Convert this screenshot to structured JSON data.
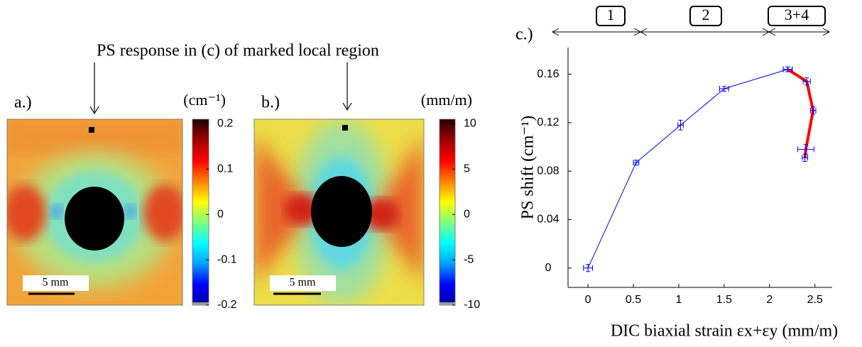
{
  "annotation": "PS response in (c) of marked local region",
  "chart_data": [
    {
      "type": "heatmap",
      "panel_label": "a.)",
      "colorbar_label": "(cm⁻¹)",
      "scale_bar_label": "5 mm",
      "colormap": "jet",
      "clim": [
        -0.2,
        0.21
      ],
      "cticks": [
        0.2,
        0.1,
        0,
        -0.1,
        -0.2
      ]
    },
    {
      "type": "heatmap",
      "panel_label": "b.)",
      "colorbar_label": "(mm/m)",
      "scale_bar_label": "5 mm",
      "colormap": "jet",
      "clim": [
        -10,
        10.5
      ],
      "cticks": [
        10,
        5,
        0,
        -5,
        -10
      ]
    },
    {
      "type": "line",
      "panel_label": "c.)",
      "stage_labels": [
        "1",
        "2",
        "3+4"
      ],
      "xlabel": "DIC biaxial strain εx+εy (mm/m)",
      "ylabel": "PS shift (cm⁻¹)",
      "xlim": [
        -0.22,
        2.69
      ],
      "ylim": [
        -0.016,
        0.182
      ],
      "xticks": [
        0,
        0.5,
        1,
        1.5,
        2,
        2.5
      ],
      "yticks": [
        0,
        0.04,
        0.08,
        0.12,
        0.16
      ],
      "error_color": "#0000ff",
      "series": [
        {
          "color": "#0000ff",
          "width": 1,
          "x": [
            0,
            0.53,
            1.02,
            1.5,
            2.2
          ],
          "values": [
            0,
            0.087,
            0.118,
            0.148,
            0.164
          ],
          "xerr": [
            0.05,
            0.03,
            0.03,
            0.05,
            0.05
          ],
          "yerr": [
            0.003,
            0.002,
            0.004,
            0.002,
            0.002
          ]
        },
        {
          "color": "#ff0000",
          "width": 4,
          "x": [
            2.2,
            2.41,
            2.48,
            2.4,
            2.39
          ],
          "values": [
            0.164,
            0.154,
            0.13,
            0.098,
            0.091
          ],
          "xerr": [
            0.05,
            0.04,
            0.03,
            0.09,
            0.03
          ],
          "yerr": [
            0.002,
            0.003,
            0.003,
            0.004,
            0.003
          ]
        }
      ]
    }
  ]
}
